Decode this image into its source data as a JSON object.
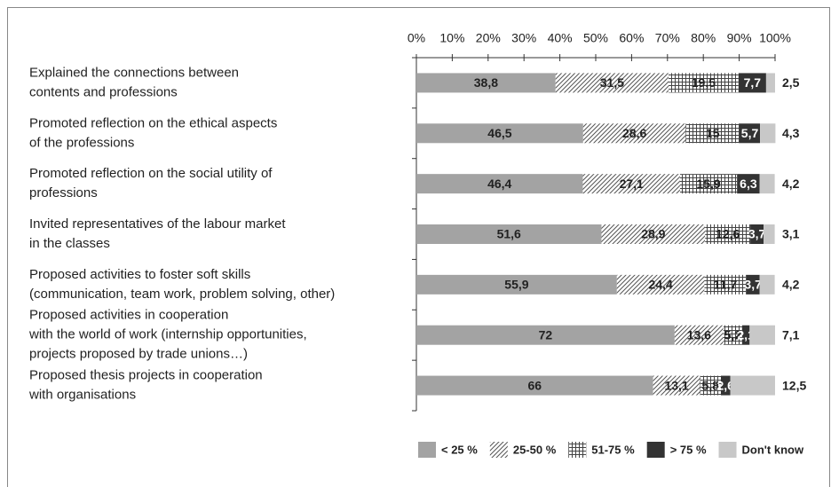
{
  "chart_data": {
    "type": "stacked_barh",
    "categories": [
      [
        "Explained the connections between",
        "contents and professions"
      ],
      [
        "Promoted reflection on the ethical aspects",
        "of the professions"
      ],
      [
        "Promoted reflection on the social utility of",
        "professions"
      ],
      [
        "Invited representatives of the labour market",
        "in the classes"
      ],
      [
        "Proposed activities to foster soft skills",
        "(communication, team work, problem solving, other)"
      ],
      [
        "Proposed activities in cooperation",
        "with the world of work (internship opportunities,",
        "projects proposed by trade unions…)"
      ],
      [
        "Proposed thesis projects in cooperation",
        "with organisations"
      ]
    ],
    "series": [
      {
        "name": "< 25 %",
        "color": "#a3a3a3",
        "pattern": "solid",
        "values": [
          38.8,
          46.5,
          46.4,
          51.6,
          55.9,
          72,
          66
        ],
        "value_labels": [
          "38,8",
          "46,5",
          "46,4",
          "51,6",
          "55,9",
          "72",
          "66"
        ]
      },
      {
        "name": "25-50 %",
        "color": "#555555",
        "pattern": "diagonal",
        "values": [
          31.5,
          28.6,
          27.1,
          28.9,
          24.4,
          13.6,
          13.1
        ],
        "value_labels": [
          "31,5",
          "28,6",
          "27,1",
          "28,9",
          "24,4",
          "13,6",
          "13,1"
        ]
      },
      {
        "name": "51-75 %",
        "color": "#444444",
        "pattern": "grid",
        "values": [
          19.5,
          15,
          15.9,
          12.6,
          11.7,
          5.2,
          5.8
        ],
        "value_labels": [
          "19,5",
          "15",
          "15,9",
          "12,6",
          "11,7",
          "5,2",
          "5,8"
        ]
      },
      {
        "name": "> 75 %",
        "color": "#333333",
        "pattern": "solid",
        "values": [
          7.7,
          5.7,
          6.3,
          3.7,
          3.7,
          2.1,
          2.6
        ],
        "value_labels": [
          "7,7",
          "5,7",
          "6,3",
          "3,7",
          "3,7",
          "2,1",
          "2,6"
        ]
      },
      {
        "name": "Don't know",
        "color": "#c8c8c8",
        "pattern": "solid",
        "values": [
          2.5,
          4.3,
          4.2,
          3.1,
          4.2,
          7.1,
          12.5
        ],
        "value_labels": [
          "2,5",
          "4,3",
          "4,2",
          "3,1",
          "4,2",
          "7,1",
          "12,5"
        ]
      }
    ],
    "xlim": [
      0,
      100
    ],
    "xticks": [
      {
        "value": 0,
        "label": "0%"
      },
      {
        "value": 10,
        "label": "10%"
      },
      {
        "value": 20,
        "label": "20%"
      },
      {
        "value": 30,
        "label": "30%"
      },
      {
        "value": 40,
        "label": "40%"
      },
      {
        "value": 50,
        "label": "50%"
      },
      {
        "value": 60,
        "label": "60%"
      },
      {
        "value": 70,
        "label": "70%"
      },
      {
        "value": 80,
        "label": "80%"
      },
      {
        "value": 90,
        "label": "90%"
      },
      {
        "value": 100,
        "label": "100%"
      }
    ],
    "legend": "bottom"
  }
}
